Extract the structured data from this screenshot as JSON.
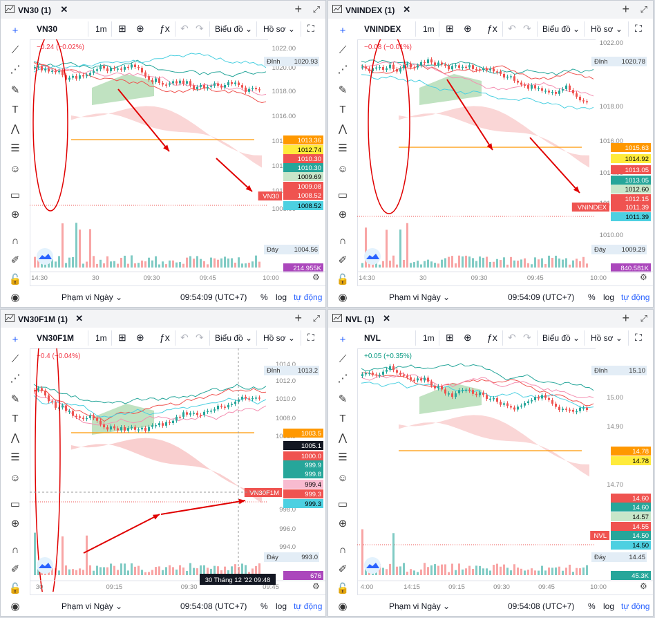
{
  "panels": [
    {
      "title": "VN30 (1)",
      "symbol": "VN30",
      "interval": "1m",
      "chart_menu": "Biểu đồ",
      "profile_menu": "Hồ sơ",
      "change": "−0.24 (−0.02%)",
      "change_color": "#f23645",
      "y_ticks": [
        "1022.00",
        "1020.00",
        "1018.00",
        "1016.00",
        "1014.00",
        "1012.00",
        "1010.00",
        "1008.00",
        "1006.00"
      ],
      "high_label": "Đỉnh",
      "high_value": "1020.93",
      "low_label": "Đáy",
      "low_value": "1004.56",
      "volume_badge": "214.955K",
      "symbol_badge": "VN30",
      "last_price": "1008.52",
      "price_tags": [
        "1013.36",
        "1012.74",
        "1010.30",
        "1010.30",
        "1009.69",
        "1009.08",
        "1008.52",
        "1008.52"
      ],
      "x_ticks": [
        "14:30",
        "30",
        "09:30",
        "09:45",
        "10:00"
      ],
      "range_label": "Phạm vi Ngày",
      "clock": "09:54:09 (UTC+7)",
      "pct": "%",
      "log": "log",
      "auto": "tự động",
      "crosshair_label": ""
    },
    {
      "title": "VNINDEX (1)",
      "symbol": "VNINDEX",
      "interval": "1m",
      "chart_menu": "Biểu đồ",
      "profile_menu": "Hồ sơ",
      "change": "−0.08 (−0.01%)",
      "change_color": "#f23645",
      "y_ticks": [
        "1022.00",
        "1018.00",
        "1016.00",
        "1014.00",
        "1012.00",
        "1010.00"
      ],
      "high_label": "Đỉnh",
      "high_value": "1020.78",
      "low_label": "Đáy",
      "low_value": "1009.29",
      "volume_badge": "840.581K",
      "symbol_badge": "VNINDEX",
      "last_price": "1011.39",
      "price_tags": [
        "1015.63",
        "1014.92",
        "1013.05",
        "1013.05",
        "1012.60",
        "1012.15",
        "1011.39",
        "1011.39"
      ],
      "x_ticks": [
        "14:30",
        "30",
        "09:30",
        "09:45",
        "10:00"
      ],
      "range_label": "Phạm vi Ngày",
      "clock": "09:54:09 (UTC+7)",
      "pct": "%",
      "log": "log",
      "auto": "tự động",
      "crosshair_label": ""
    },
    {
      "title": "VN30F1M (1)",
      "symbol": "VN30F1M",
      "interval": "1m",
      "chart_menu": "Biểu đồ",
      "profile_menu": "Hồ sơ",
      "change": "−0.4 (−0.04%)",
      "change_color": "#f23645",
      "y_ticks": [
        "1014.0",
        "1012.0",
        "1010.0",
        "1008.0",
        "1006.0",
        "998.0",
        "996.0",
        "994.0"
      ],
      "high_label": "Đỉnh",
      "high_value": "1013.2",
      "low_label": "Đáy",
      "low_value": "993.0",
      "volume_badge": "676",
      "symbol_badge": "VN30F1M",
      "last_price": "999.3",
      "price_tags": [
        "1003.5",
        "1005.1",
        "1000.0",
        "999.9",
        "999.8",
        "999.4",
        "999.3",
        "999.3"
      ],
      "x_ticks": [
        "30",
        "09:15",
        "09:30",
        "09:45"
      ],
      "range_label": "Phạm vi Ngày",
      "clock": "09:54:08 (UTC+7)",
      "pct": "%",
      "log": "log",
      "auto": "tự động",
      "crosshair_label": "30 Tháng 12 '22   09:48"
    },
    {
      "title": "NVL (1)",
      "symbol": "NVL",
      "interval": "1m",
      "chart_menu": "Biểu đồ",
      "profile_menu": "Hồ sơ",
      "change": "+0.05 (+0.35%)",
      "change_color": "#089981",
      "y_ticks": [
        "15.00",
        "14.90",
        "14.70"
      ],
      "high_label": "Đỉnh",
      "high_value": "15.10",
      "low_label": "Đáy",
      "low_value": "14.45",
      "volume_badge": "45.3K",
      "symbol_badge": "NVL",
      "last_price": "14.50",
      "price_tags": [
        "14.78",
        "14.78",
        "14.60",
        "14.60",
        "14.57",
        "14.55",
        "14.50",
        "14.50"
      ],
      "x_ticks": [
        "4:00",
        "14:15",
        "09:15",
        "09:30",
        "09:45",
        "10:00"
      ],
      "range_label": "Phạm vi Ngày",
      "clock": "09:54:08 (UTC+7)",
      "pct": "%",
      "log": "log",
      "auto": "tự động",
      "crosshair_label": ""
    }
  ],
  "colors": {
    "up": "#26a69a",
    "down": "#ef5350",
    "accent": "#2962ff",
    "annotation": "#e00000"
  }
}
